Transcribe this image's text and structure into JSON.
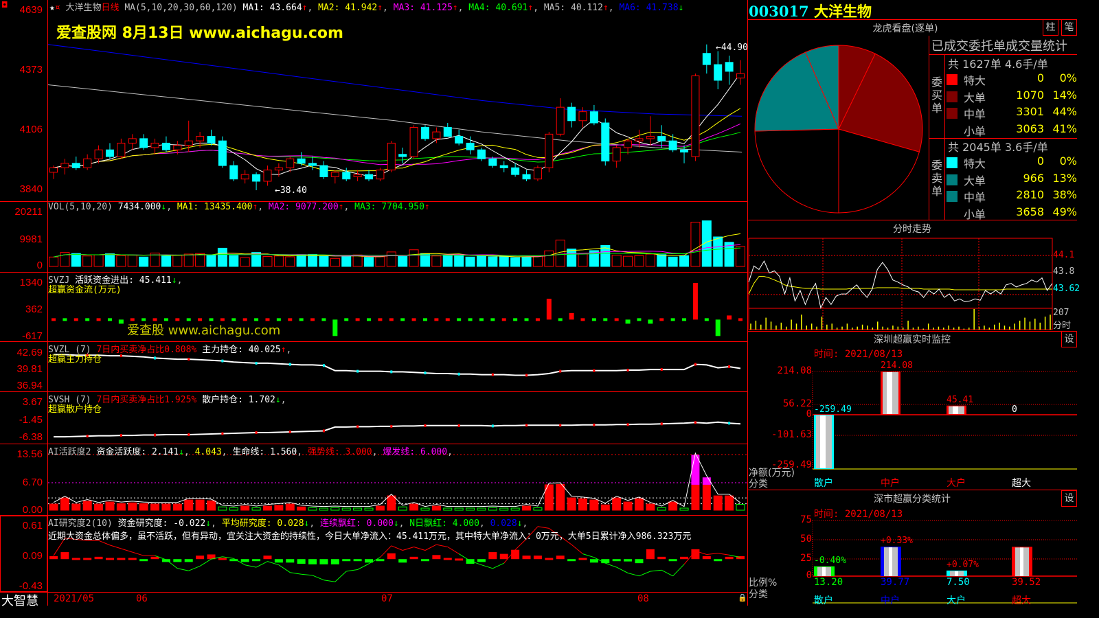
{
  "header": {
    "stock_name": "大洋生物",
    "period": "日线",
    "ma_label": "MA(5,10,20,30,60,120)",
    "ma1": "MA1: 43.664",
    "ma2": "MA2: 41.942",
    "ma3": "MA3: 41.125",
    "ma4": "MA4: 40.691",
    "ma5": "MA5: 40.112",
    "ma6": "MA6: 41.738",
    "up": "↑",
    "down": "↓"
  },
  "watermark": {
    "top": "爱查股网   8月13日    www.aichagu.com",
    "mid": "爱查股 www.aichagu.com"
  },
  "price_axis": [
    "4639",
    "4373",
    "4106",
    "3840"
  ],
  "price_annotations": {
    "high": "44.90",
    "low": "38.40"
  },
  "candles": [
    [
      39.2,
      39.5,
      38.9,
      39.4
    ],
    [
      39.4,
      39.8,
      39.1,
      39.6
    ],
    [
      39.6,
      39.9,
      39.3,
      39.4
    ],
    [
      39.4,
      40.0,
      39.3,
      39.8
    ],
    [
      39.8,
      40.4,
      39.6,
      40.2
    ],
    [
      40.2,
      40.5,
      39.8,
      39.9
    ],
    [
      39.9,
      40.7,
      39.8,
      40.5
    ],
    [
      40.5,
      40.9,
      40.2,
      40.7
    ],
    [
      40.7,
      40.9,
      40.2,
      40.3
    ],
    [
      40.3,
      40.7,
      40.0,
      40.5
    ],
    [
      40.5,
      40.8,
      40.1,
      40.2
    ],
    [
      40.2,
      40.6,
      40.0,
      40.4
    ],
    [
      40.4,
      41.5,
      40.1,
      40.6
    ],
    [
      40.6,
      41.0,
      40.3,
      40.8
    ],
    [
      40.8,
      41.1,
      40.4,
      40.5
    ],
    [
      40.6,
      40.8,
      39.4,
      39.5
    ],
    [
      39.5,
      39.7,
      38.8,
      38.9
    ],
    [
      38.9,
      39.3,
      38.7,
      39.1
    ],
    [
      39.1,
      39.2,
      38.4,
      38.8
    ],
    [
      38.8,
      39.5,
      38.6,
      39.3
    ],
    [
      39.3,
      39.6,
      39.0,
      39.4
    ],
    [
      39.4,
      39.9,
      39.2,
      39.8
    ],
    [
      39.8,
      40.1,
      39.5,
      39.6
    ],
    [
      39.6,
      39.9,
      39.3,
      39.5
    ],
    [
      39.5,
      39.7,
      38.9,
      39.0
    ],
    [
      39.0,
      39.3,
      38.7,
      39.2
    ],
    [
      39.2,
      39.4,
      38.8,
      38.9
    ],
    [
      39.0,
      39.3,
      38.8,
      39.1
    ],
    [
      39.1,
      39.3,
      38.8,
      38.9
    ],
    [
      38.9,
      39.4,
      38.8,
      39.3
    ],
    [
      39.3,
      40.6,
      39.2,
      40.5
    ],
    [
      40.0,
      40.3,
      39.6,
      39.9
    ],
    [
      39.9,
      41.3,
      39.8,
      41.2
    ],
    [
      41.2,
      41.3,
      40.6,
      40.7
    ],
    [
      40.7,
      41.2,
      40.5,
      41.0
    ],
    [
      41.2,
      41.4,
      40.8,
      40.8
    ],
    [
      40.8,
      41.1,
      40.4,
      40.5
    ],
    [
      40.5,
      40.8,
      40.0,
      40.2
    ],
    [
      40.2,
      40.3,
      39.7,
      39.8
    ],
    [
      39.8,
      39.9,
      39.4,
      39.5
    ],
    [
      39.5,
      39.7,
      39.2,
      39.4
    ],
    [
      39.4,
      39.6,
      39.0,
      39.1
    ],
    [
      39.1,
      39.3,
      38.8,
      38.9
    ],
    [
      38.9,
      39.5,
      38.8,
      39.4
    ],
    [
      39.4,
      41.0,
      39.2,
      40.9
    ],
    [
      40.9,
      42.5,
      40.8,
      42.1
    ],
    [
      42.1,
      42.3,
      41.2,
      41.5
    ],
    [
      41.5,
      42.1,
      41.2,
      41.9
    ],
    [
      41.9,
      42.2,
      41.3,
      41.4
    ],
    [
      41.4,
      41.6,
      39.5,
      39.7
    ],
    [
      39.7,
      40.4,
      39.4,
      40.3
    ],
    [
      40.3,
      40.7,
      40.0,
      40.6
    ],
    [
      40.6,
      41.1,
      40.3,
      40.7
    ],
    [
      40.7,
      41.7,
      40.4,
      40.8
    ],
    [
      40.8,
      41.3,
      40.3,
      40.6
    ],
    [
      40.6,
      40.9,
      40.1,
      40.2
    ],
    [
      40.2,
      40.4,
      39.6,
      40.1
    ],
    [
      39.9,
      43.6,
      39.7,
      43.5
    ],
    [
      44.5,
      44.9,
      43.6,
      44.0
    ],
    [
      44.0,
      44.6,
      42.9,
      43.3
    ],
    [
      44.1,
      44.4,
      43.1,
      43.7
    ],
    [
      43.4,
      44.2,
      43.1,
      43.6
    ]
  ],
  "ma60": [
    43.1,
    42.7,
    42.3,
    41.9,
    41.5,
    41.0,
    40.6,
    40.3,
    40.1
  ],
  "ma120": [
    44.9,
    44.4,
    43.9,
    43.4,
    42.9,
    42.4,
    42.0,
    41.8,
    41.7
  ],
  "volume": {
    "label": "VOL(5,10,20)",
    "value": "7434.000",
    "ma1": "MA1: 13435.400",
    "ma2": "MA2: 9077.200",
    "ma3": "MA3: 7704.950",
    "axis": [
      "20211",
      "9981",
      "0"
    ],
    "max": 20211,
    "values": [
      3500,
      5200,
      4800,
      3900,
      4300,
      4700,
      4000,
      4200,
      3500,
      5000,
      3900,
      4100,
      4600,
      4800,
      4200,
      6800,
      4100,
      3300,
      5200,
      3700,
      3900,
      3600,
      4400,
      4500,
      3800,
      3000,
      3800,
      4300,
      3400,
      3600,
      5400,
      3700,
      6200,
      4800,
      3900,
      4200,
      4300,
      3500,
      4000,
      3600,
      3600,
      3300,
      3600,
      4000,
      5800,
      9800,
      6500,
      4700,
      5900,
      7800,
      4200,
      3800,
      4000,
      4600,
      4400,
      3500,
      4000,
      16500,
      17000,
      11000,
      9000,
      7434
    ]
  },
  "svzj": {
    "name": "SVZJ",
    "label": "活跃资金进出: 45.411",
    "sub": "超赢资金流(万元)",
    "axis": [
      "1340",
      "362",
      "-617"
    ],
    "range": [
      -617,
      1340
    ],
    "values": [
      60,
      -60,
      60,
      -60,
      60,
      -60,
      -150,
      60,
      -60,
      60,
      -60,
      60,
      -60,
      60,
      -60,
      60,
      -60,
      60,
      -60,
      60,
      -60,
      60,
      -60,
      60,
      -60,
      -600,
      -60,
      60,
      -60,
      60,
      60,
      -60,
      60,
      -60,
      60,
      60,
      -60,
      -60,
      -60,
      -60,
      60,
      -60,
      -60,
      60,
      760,
      -60,
      240,
      60,
      -60,
      -60,
      60,
      -150,
      -60,
      -150,
      60,
      -60,
      -60,
      1340,
      -60,
      -600,
      150,
      45
    ]
  },
  "svzl": {
    "name": "SVZL (7)",
    "ratio": "7日内买卖净占比0.808%",
    "label": "主力持仓: 40.025",
    "sub": "超赢主力持仓",
    "axis": [
      "42.69",
      "39.81",
      "36.94"
    ],
    "range": [
      36.94,
      42.69
    ],
    "values": [
      42.4,
      42.4,
      42.3,
      42.3,
      42.3,
      42.2,
      42.2,
      42.1,
      42.0,
      41.8,
      41.7,
      41.6,
      41.6,
      41.5,
      41.4,
      41.3,
      41.1,
      41.0,
      40.9,
      40.9,
      40.8,
      40.7,
      40.6,
      40.6,
      40.5,
      39.6,
      39.6,
      39.5,
      39.5,
      39.5,
      39.4,
      39.4,
      39.3,
      39.2,
      39.1,
      39.1,
      39.0,
      39.0,
      38.9,
      38.9,
      38.9,
      38.8,
      38.8,
      38.9,
      39.1,
      39.5,
      39.6,
      39.6,
      39.6,
      39.6,
      39.6,
      39.7,
      39.7,
      39.8,
      39.8,
      39.8,
      39.8,
      40.7,
      40.6,
      40.1,
      40.3,
      40.0
    ]
  },
  "svsh": {
    "name": "SVSH (7)",
    "ratio": "7日内买卖净占比1.925%",
    "label": "散户持仓: 1.702",
    "sub": "超赢散户持仓",
    "axis": [
      "3.67",
      "-1.45",
      "-6.38"
    ],
    "range": [
      -6.38,
      3.67
    ],
    "values": [
      -6.2,
      -6.2,
      -6.1,
      -6.0,
      -5.9,
      -5.9,
      -5.8,
      -5.8,
      -5.7,
      -5.7,
      -5.6,
      -5.6,
      -5.6,
      -5.5,
      -5.4,
      -5.3,
      -5.2,
      -5.1,
      -5.0,
      -5.0,
      -4.9,
      -4.8,
      -4.7,
      -4.6,
      -4.5,
      -3.4,
      -3.4,
      -3.3,
      -3.3,
      -3.2,
      -3.2,
      -3.1,
      -3.1,
      -3.0,
      -3.0,
      -3.0,
      -3.0,
      -3.0,
      -3.0,
      -3.1,
      -3.0,
      -3.0,
      -2.9,
      -2.9,
      -2.9,
      -2.9,
      -2.9,
      -2.8,
      -2.8,
      -2.8,
      -2.7,
      -2.7,
      -2.6,
      -2.6,
      -2.5,
      -2.4,
      -2.3,
      -2.1,
      -2.3,
      -2.0,
      -2.3,
      -2.5
    ]
  },
  "ai_active": {
    "name": "AI活跃度2",
    "label": "资金活跃度: 2.141",
    "v2": "4.043",
    "life": "生命线: 1.560",
    "strong": "强势线: 3.000",
    "burst": "爆发线: 6.000",
    "axis": [
      "13.56",
      "6.70",
      "0.00"
    ],
    "range": [
      0,
      13.56
    ],
    "values": [
      1.5,
      3.0,
      1.5,
      2.2,
      1.5,
      2.0,
      1.6,
      1.8,
      1.6,
      1.5,
      1.5,
      1.5,
      2.5,
      2.5,
      2.3,
      -0.8,
      -0.6,
      1.0,
      -0.6,
      1.0,
      1.2,
      1.5,
      0.8,
      -0.6,
      -0.5,
      -0.6,
      -0.5,
      -0.5,
      -0.5,
      1.0,
      3.5,
      -0.8,
      1.5,
      -0.5,
      1.0,
      -0.5,
      -0.5,
      -0.5,
      -0.5,
      -0.6,
      -0.5,
      -0.5,
      1.0,
      -0.6,
      6.2,
      6.3,
      3.0,
      2.8,
      2.5,
      1.3,
      3.0,
      2.0,
      2.8,
      1.5,
      -0.6,
      2.0,
      -0.5,
      13.5,
      8.0,
      3.5,
      3.5,
      -1.4
    ]
  },
  "ai_research": {
    "name": "AI研究度2(10)",
    "label": "资金研究度: -0.022",
    "avg": "平均研究度: 0.028",
    "cont": "连续飘红: 0.000",
    "nday": "N日飘红: 4.000",
    "nval": "0.028",
    "comment": "近期大资金总体偏多，虽不活跃，但有异动，宜关注大资金的持续性，今日大单净流入：45.411万元，其中特大单净流入：0万元，大单5日累计净入986.323万元",
    "axis": [
      "0.61",
      "0.09",
      "-0.43"
    ],
    "range": [
      -0.43,
      0.61
    ],
    "bars": [
      0.05,
      0.12,
      0.02,
      0.02,
      0.04,
      0.02,
      0.02,
      0.02,
      -0.01,
      0.04,
      -0.05,
      -0.05,
      -0.05,
      0.06,
      0.08,
      0.02,
      -0.03,
      -0.05,
      -0.03,
      0.06,
      -0.06,
      -0.06,
      -0.08,
      -0.09,
      -0.09,
      -0.09,
      -0.01,
      -0.01,
      -0.06,
      -0.01,
      0.1,
      -0.06,
      0.04,
      -0.02,
      0.07,
      0.02,
      0.01,
      -0.08,
      -0.05,
      0.12,
      0.09,
      0.16,
      0.06,
      0.06,
      0.02,
      0.06,
      -0.02,
      0.02,
      -0.06,
      -0.07,
      -0.01,
      -0.04,
      -0.07,
      0.17,
      0.04,
      -0.01,
      0.04,
      0.17,
      0.05,
      -0.01,
      0.04,
      0.05
    ],
    "line": [
      0.1,
      0.4,
      0.38,
      0.36,
      0.36,
      0.28,
      0.22,
      0.16,
      0.1,
      0.1,
      0.03,
      -0.12,
      -0.16,
      -0.08,
      0.04,
      0.08,
      0.05,
      -0.06,
      -0.1,
      0.0,
      -0.06,
      -0.19,
      -0.22,
      -0.24,
      -0.32,
      -0.35,
      -0.17,
      -0.14,
      -0.04,
      0.07,
      0.27,
      0.19,
      0.25,
      0.19,
      0.29,
      0.25,
      0.13,
      0.01,
      -0.06,
      -0.12,
      -0.03,
      0.2,
      0.39,
      0.6,
      0.57,
      0.43,
      0.29,
      0.13,
      0.07,
      -0.03,
      -0.1,
      -0.2,
      -0.25,
      -0.17,
      -0.15,
      -0.25,
      -0.05,
      0.18,
      0.12,
      0.14,
      0.11,
      0.07
    ]
  },
  "date_axis": [
    "2021/05",
    "06",
    "07",
    "08"
  ],
  "brand": "大智慧",
  "right": {
    "code": "003017",
    "name": "大洋生物",
    "panel_title": "龙虎看盘(逐单)",
    "btn_bar": "柱",
    "btn_tick": "笔",
    "stats_title": "已成交委托单成交量统计",
    "buy": {
      "side": "委买单",
      "summary": "共 1627单 4.6手/单",
      "rows": [
        {
          "label": "特大",
          "value": "0",
          "pct": "0%",
          "color": "#ff0000",
          "v": 0
        },
        {
          "label": "大单",
          "value": "1070",
          "pct": "14%",
          "color": "#800000",
          "v": 1070
        },
        {
          "label": "中单",
          "value": "3301",
          "pct": "44%",
          "color": "#800000",
          "v": 3301
        },
        {
          "label": "小单",
          "value": "3063",
          "pct": "41%",
          "color": "#000000",
          "v": 3063
        }
      ]
    },
    "sell": {
      "side": "委卖单",
      "summary": "共 2045单 3.6手/单",
      "rows": [
        {
          "label": "特大",
          "value": "0",
          "pct": "0%",
          "color": "#00ffff",
          "v": 0
        },
        {
          "label": "大单",
          "value": "966",
          "pct": "13%",
          "color": "#008080",
          "v": 966
        },
        {
          "label": "中单",
          "value": "2810",
          "pct": "38%",
          "color": "#008080",
          "v": 2810
        },
        {
          "label": "小单",
          "value": "3658",
          "pct": "49%",
          "color": "#000000",
          "v": 3658
        }
      ]
    },
    "intraday": {
      "title": "分时走势",
      "axis": [
        "44.1",
        "43.8",
        "43.62",
        "207",
        "分时"
      ],
      "price": [
        43.72,
        43.95,
        43.9,
        44.02,
        43.85,
        43.88,
        43.8,
        43.55,
        43.78,
        43.45,
        43.6,
        43.4,
        43.58,
        43.7,
        43.35,
        43.5,
        43.4,
        43.52,
        43.55,
        43.55,
        43.62,
        43.68,
        43.58,
        43.5,
        43.62,
        43.9,
        44.0,
        43.9,
        43.75,
        43.72,
        43.68,
        43.65,
        43.6,
        43.58,
        43.5,
        43.6,
        43.55,
        43.62,
        43.5,
        43.55,
        43.45,
        43.48,
        43.44,
        43.45,
        43.48,
        43.46,
        43.6,
        43.55,
        43.6,
        43.55,
        43.68,
        43.7,
        43.65,
        43.68,
        43.7,
        43.75,
        43.72,
        43.78,
        43.6,
        43.7
      ],
      "avg": [
        43.55,
        43.7,
        43.8,
        43.8,
        43.78,
        43.75,
        43.72,
        43.68,
        43.66,
        43.65,
        43.64,
        43.63,
        43.63,
        43.63,
        43.62,
        43.62,
        43.62,
        43.62,
        43.62,
        43.62,
        43.63,
        43.63,
        43.63,
        43.63,
        43.63,
        43.64,
        43.64,
        43.64,
        43.64,
        43.64,
        43.63,
        43.63,
        43.63,
        43.63,
        43.62,
        43.62,
        43.62,
        43.62,
        43.62,
        43.62,
        43.61,
        43.61,
        43.61,
        43.61,
        43.61,
        43.61,
        43.61,
        43.61,
        43.61,
        43.61,
        43.62,
        43.62,
        43.62,
        43.62,
        43.62,
        43.62,
        43.62,
        43.62,
        43.62,
        43.62
      ],
      "vol": [
        60,
        90,
        50,
        120,
        80,
        40,
        70,
        30,
        100,
        60,
        150,
        40,
        60,
        30,
        130,
        50,
        60,
        20,
        30,
        60,
        20,
        30,
        50,
        40,
        20,
        80,
        30,
        20,
        40,
        30,
        20,
        90,
        20,
        30,
        10,
        60,
        20,
        30,
        20,
        40,
        20,
        30,
        10,
        20,
        207,
        30,
        40,
        20,
        50,
        70,
        40,
        30,
        60,
        90,
        120,
        80,
        110,
        70,
        130,
        150
      ],
      "vmax": 207
    },
    "sz_monitor": {
      "title": "深圳超赢实时监控",
      "settings": "设",
      "time": "时间: 2021/08/13",
      "axis": [
        "214.08",
        "56.22",
        "0",
        "-101.63",
        "-259.49"
      ],
      "ylabel": "净额(万元)",
      "xlabel": "分类",
      "bars": [
        {
          "cat": "散户",
          "value": -259.49,
          "label": "-259.49",
          "color": "#00ffff"
        },
        {
          "cat": "中户",
          "value": 214.08,
          "label": "214.08",
          "color": "#ff0000"
        },
        {
          "cat": "大户",
          "value": 45.41,
          "label": "45.41",
          "color": "#ff0000"
        },
        {
          "cat": "超大",
          "value": 0,
          "label": "0",
          "color": "#ffffff"
        }
      ]
    },
    "sz_class": {
      "title": "深市超赢分类统计",
      "settings": "设",
      "time": "时间: 2021/08/13",
      "axis": [
        "75",
        "50",
        "25",
        "0"
      ],
      "ylabel": "比例%",
      "xlabel": "分类",
      "bars": [
        {
          "cat": "散户",
          "value": 13.2,
          "label": "13.20",
          "change": "-0.40%",
          "color": "#00ff00",
          "chg_color": "#00ff00",
          "cat_color": "#00ffff"
        },
        {
          "cat": "中户",
          "value": 39.77,
          "label": "39.77",
          "change": "+0.33%",
          "color": "#0000ff",
          "chg_color": "#ff0000",
          "cat_color": "#0000ff"
        },
        {
          "cat": "大户",
          "value": 7.5,
          "label": "7.50",
          "change": "+0.07%",
          "color": "#00ffff",
          "chg_color": "#ff0000",
          "cat_color": "#00ffff"
        },
        {
          "cat": "超大",
          "value": 39.52,
          "label": "39.52",
          "change": "",
          "color": "#ff0000",
          "chg_color": "#ff0000",
          "cat_color": "#ff0000"
        }
      ]
    }
  }
}
